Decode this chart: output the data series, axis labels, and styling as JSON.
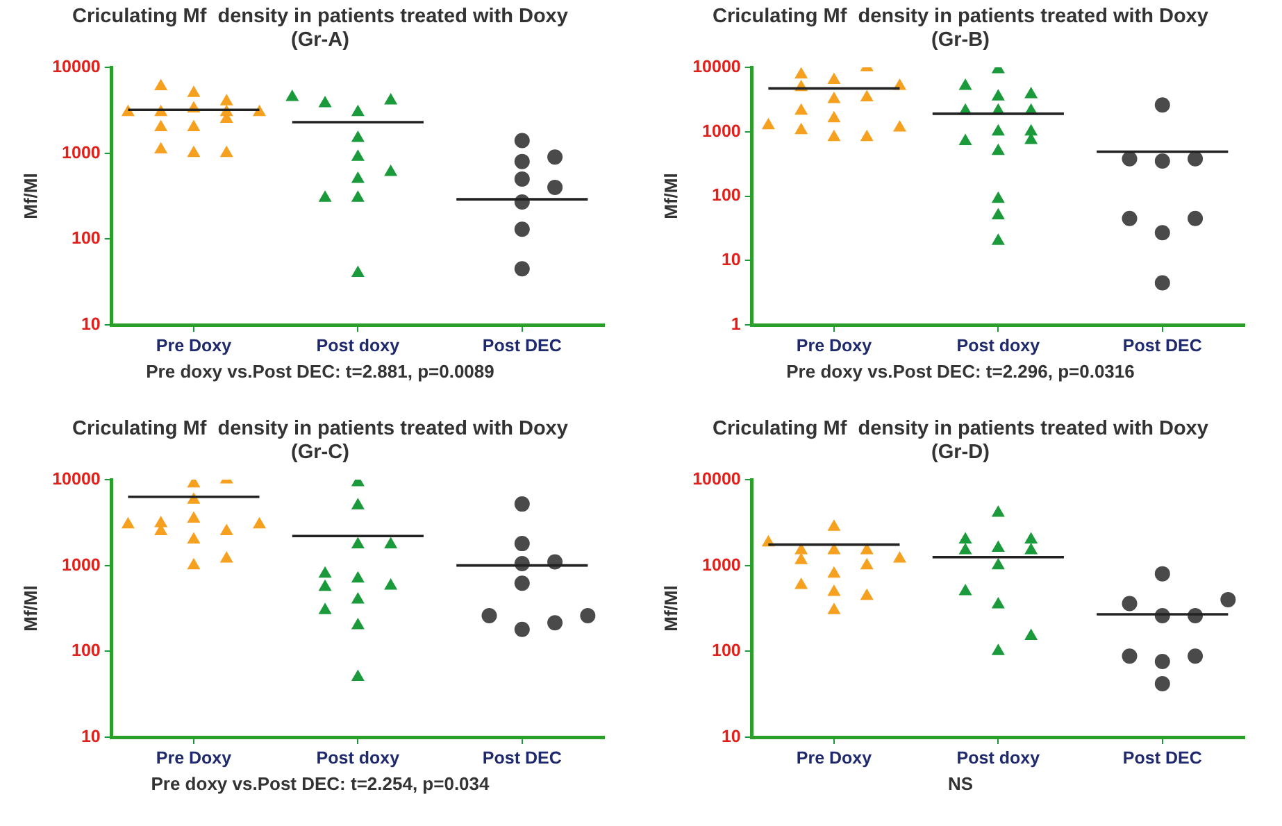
{
  "chart_data": [
    {
      "type": "scatter",
      "title": "Criculating Mf  density in patients treated with Doxy",
      "subtitle": "(Gr-A)",
      "ylabel": "Mf/Ml",
      "log": "y",
      "grid": false,
      "legend": false,
      "categories": [
        null,
        null,
        "Pre Doxy",
        null,
        null,
        null,
        null,
        "Post doxy",
        null,
        null,
        null,
        null,
        "Post DEC",
        null,
        null
      ],
      "ylim": [
        10,
        10000
      ],
      "yticks": [
        10,
        100,
        1000,
        10000
      ],
      "annotations": [
        "Pre doxy vs.Post DEC: t=2.881, p=0.0089"
      ],
      "series": [
        {
          "type": "scatter",
          "marker": "triangle",
          "color": "#f5a01e",
          "values": [
            3000,
            6000,
            5000,
            4000,
            3000,
            null,
            null,
            null,
            null,
            null,
            null,
            null,
            null,
            null,
            null
          ]
        },
        {
          "type": "scatter",
          "marker": "triangle",
          "color": "#f5a01e",
          "values": [
            null,
            3000,
            3300,
            3000,
            null,
            null,
            null,
            null,
            null,
            null,
            null,
            null,
            null,
            null,
            null
          ]
        },
        {
          "type": "scatter",
          "marker": "triangle",
          "color": "#f5a01e",
          "values": [
            null,
            2000,
            2000,
            2500,
            null,
            null,
            null,
            null,
            null,
            null,
            null,
            null,
            null,
            null,
            null
          ]
        },
        {
          "type": "scatter",
          "marker": "triangle",
          "color": "#f5a01e",
          "values": [
            null,
            1100,
            1000,
            1000,
            null,
            null,
            null,
            null,
            null,
            null,
            null,
            null,
            null,
            null,
            null
          ]
        },
        {
          "type": "scatter",
          "marker": "triangle",
          "color": "#1a9a3a",
          "values": [
            null,
            null,
            null,
            null,
            null,
            4500,
            3800,
            3000,
            4100,
            null,
            null,
            null,
            null,
            null,
            null
          ]
        },
        {
          "type": "scatter",
          "marker": "triangle",
          "color": "#1a9a3a",
          "values": [
            null,
            null,
            null,
            null,
            null,
            null,
            300,
            1500,
            600,
            null,
            null,
            null,
            null,
            null,
            null
          ]
        },
        {
          "type": "scatter",
          "marker": "triangle",
          "color": "#1a9a3a",
          "values": [
            null,
            null,
            null,
            null,
            null,
            null,
            null,
            900,
            null,
            null,
            null,
            null,
            null,
            null,
            null
          ]
        },
        {
          "type": "scatter",
          "marker": "triangle",
          "color": "#1a9a3a",
          "values": [
            null,
            null,
            null,
            null,
            null,
            null,
            null,
            500,
            null,
            null,
            null,
            null,
            null,
            null,
            null
          ]
        },
        {
          "type": "scatter",
          "marker": "triangle",
          "color": "#1a9a3a",
          "values": [
            null,
            null,
            null,
            null,
            null,
            null,
            null,
            300,
            null,
            null,
            null,
            null,
            null,
            null,
            null
          ]
        },
        {
          "type": "scatter",
          "marker": "triangle",
          "color": "#1a9a3a",
          "values": [
            null,
            null,
            null,
            null,
            null,
            null,
            null,
            40,
            null,
            null,
            null,
            null,
            null,
            null,
            null
          ]
        },
        {
          "type": "scatter",
          "marker": "circle",
          "color": "#4a4a4a",
          "values": [
            null,
            null,
            null,
            null,
            null,
            null,
            null,
            null,
            null,
            null,
            null,
            null,
            1400,
            900,
            null
          ]
        },
        {
          "type": "scatter",
          "marker": "circle",
          "color": "#4a4a4a",
          "values": [
            null,
            null,
            null,
            null,
            null,
            null,
            null,
            null,
            null,
            null,
            null,
            null,
            800,
            400,
            null
          ]
        },
        {
          "type": "scatter",
          "marker": "circle",
          "color": "#4a4a4a",
          "values": [
            null,
            null,
            null,
            null,
            null,
            null,
            null,
            null,
            null,
            null,
            null,
            null,
            500,
            null,
            null
          ]
        },
        {
          "type": "scatter",
          "marker": "circle",
          "color": "#4a4a4a",
          "values": [
            null,
            null,
            null,
            null,
            null,
            null,
            null,
            null,
            null,
            null,
            null,
            null,
            270,
            null,
            null
          ]
        },
        {
          "type": "scatter",
          "marker": "circle",
          "color": "#4a4a4a",
          "values": [
            null,
            null,
            null,
            null,
            null,
            null,
            null,
            null,
            null,
            null,
            null,
            null,
            130,
            null,
            null
          ]
        },
        {
          "type": "scatter",
          "marker": "circle",
          "color": "#4a4a4a",
          "values": [
            null,
            null,
            null,
            null,
            null,
            null,
            null,
            null,
            null,
            null,
            null,
            null,
            45,
            null,
            null
          ]
        },
        {
          "type": "line",
          "marker": "none",
          "color": "#222222",
          "values": [
            3200,
            3200,
            3200,
            3200,
            3200,
            null,
            null,
            null,
            null,
            null,
            null,
            null,
            null,
            null,
            null
          ]
        },
        {
          "type": "line",
          "marker": "none",
          "color": "#222222",
          "values": [
            null,
            null,
            null,
            null,
            null,
            2300,
            2300,
            2300,
            2300,
            2300,
            null,
            null,
            null,
            null,
            null
          ]
        },
        {
          "type": "line",
          "marker": "none",
          "color": "#222222",
          "values": [
            null,
            null,
            null,
            null,
            null,
            null,
            null,
            null,
            null,
            null,
            290,
            290,
            290,
            290,
            290
          ]
        }
      ]
    },
    {
      "type": "scatter",
      "title": "Criculating Mf  density in patients treated with Doxy",
      "subtitle": "(Gr-B)",
      "ylabel": "Mf/Ml",
      "log": "y",
      "grid": false,
      "legend": false,
      "categories": [
        null,
        null,
        "Pre Doxy",
        null,
        null,
        null,
        null,
        "Post doxy",
        null,
        null,
        null,
        null,
        "Post DEC",
        null,
        null
      ],
      "ylim": [
        1,
        10000
      ],
      "yticks": [
        1,
        10,
        100,
        1000,
        10000
      ],
      "annotations": [
        "Pre doxy vs.Post DEC: t=2.296, p=0.0316"
      ],
      "series": [
        {
          "type": "scatter",
          "marker": "triangle",
          "color": "#f5a01e",
          "values": [
            1250,
            7700,
            6300,
            10000,
            5100,
            null,
            null,
            null,
            null,
            null,
            null,
            null,
            null,
            null,
            null
          ]
        },
        {
          "type": "scatter",
          "marker": "triangle",
          "color": "#f5a01e",
          "values": [
            null,
            4900,
            3200,
            3400,
            1150,
            null,
            null,
            null,
            null,
            null,
            null,
            null,
            null,
            null,
            null
          ]
        },
        {
          "type": "scatter",
          "marker": "triangle",
          "color": "#f5a01e",
          "values": [
            null,
            2100,
            1600,
            820,
            null,
            null,
            null,
            null,
            null,
            null,
            null,
            null,
            null,
            null,
            null
          ]
        },
        {
          "type": "scatter",
          "marker": "triangle",
          "color": "#f5a01e",
          "values": [
            null,
            1050,
            820,
            null,
            null,
            null,
            null,
            null,
            null,
            null,
            null,
            null,
            null,
            null,
            null
          ]
        },
        {
          "type": "scatter",
          "marker": "triangle",
          "color": "#1a9a3a",
          "values": [
            null,
            null,
            null,
            null,
            null,
            null,
            5100,
            9300,
            3800,
            null,
            null,
            null,
            null,
            null,
            null
          ]
        },
        {
          "type": "scatter",
          "marker": "triangle",
          "color": "#1a9a3a",
          "values": [
            null,
            null,
            null,
            null,
            null,
            null,
            2100,
            3500,
            2100,
            null,
            null,
            null,
            null,
            null,
            null
          ]
        },
        {
          "type": "scatter",
          "marker": "triangle",
          "color": "#1a9a3a",
          "values": [
            null,
            null,
            null,
            null,
            null,
            null,
            710,
            2100,
            1000,
            null,
            null,
            null,
            null,
            null,
            null
          ]
        },
        {
          "type": "scatter",
          "marker": "triangle",
          "color": "#1a9a3a",
          "values": [
            null,
            null,
            null,
            null,
            null,
            null,
            null,
            1000,
            740,
            null,
            null,
            null,
            null,
            null,
            null
          ]
        },
        {
          "type": "scatter",
          "marker": "triangle",
          "color": "#1a9a3a",
          "values": [
            null,
            null,
            null,
            null,
            null,
            null,
            null,
            500,
            null,
            null,
            null,
            null,
            null,
            null,
            null
          ]
        },
        {
          "type": "scatter",
          "marker": "triangle",
          "color": "#1a9a3a",
          "values": [
            null,
            null,
            null,
            null,
            null,
            null,
            null,
            90,
            null,
            null,
            null,
            null,
            null,
            null,
            null
          ]
        },
        {
          "type": "scatter",
          "marker": "triangle",
          "color": "#1a9a3a",
          "values": [
            null,
            null,
            null,
            null,
            null,
            null,
            null,
            50,
            null,
            null,
            null,
            null,
            null,
            null,
            null
          ]
        },
        {
          "type": "scatter",
          "marker": "triangle",
          "color": "#1a9a3a",
          "values": [
            null,
            null,
            null,
            null,
            null,
            null,
            null,
            20,
            null,
            null,
            null,
            null,
            null,
            null,
            null
          ]
        },
        {
          "type": "scatter",
          "marker": "circle",
          "color": "#4a4a4a",
          "values": [
            null,
            null,
            null,
            null,
            null,
            null,
            null,
            null,
            null,
            null,
            null,
            380,
            2600,
            380,
            null
          ]
        },
        {
          "type": "scatter",
          "marker": "circle",
          "color": "#4a4a4a",
          "values": [
            null,
            null,
            null,
            null,
            null,
            null,
            null,
            null,
            null,
            null,
            null,
            45,
            350,
            45,
            null
          ]
        },
        {
          "type": "scatter",
          "marker": "circle",
          "color": "#4a4a4a",
          "values": [
            null,
            null,
            null,
            null,
            null,
            null,
            null,
            null,
            null,
            null,
            null,
            null,
            27,
            null,
            null
          ]
        },
        {
          "type": "scatter",
          "marker": "circle",
          "color": "#4a4a4a",
          "values": [
            null,
            null,
            null,
            null,
            null,
            null,
            null,
            null,
            null,
            null,
            null,
            null,
            4.5,
            null,
            null
          ]
        },
        {
          "type": "line",
          "marker": "none",
          "color": "#222222",
          "values": [
            4700,
            4700,
            4700,
            4700,
            4700,
            null,
            null,
            null,
            null,
            null,
            null,
            null,
            null,
            null,
            null
          ]
        },
        {
          "type": "line",
          "marker": "none",
          "color": "#222222",
          "values": [
            null,
            null,
            null,
            null,
            null,
            1900,
            1900,
            1900,
            1900,
            1900,
            null,
            null,
            null,
            null,
            null
          ]
        },
        {
          "type": "line",
          "marker": "none",
          "color": "#222222",
          "values": [
            null,
            null,
            null,
            null,
            null,
            null,
            null,
            null,
            null,
            null,
            490,
            490,
            490,
            490,
            490
          ]
        }
      ]
    },
    {
      "type": "scatter",
      "title": "Criculating Mf  density in patients treated with Doxy",
      "subtitle": "(Gr-C)",
      "ylabel": "Mf/Ml",
      "log": "y",
      "grid": false,
      "legend": false,
      "categories": [
        null,
        null,
        "Pre Doxy",
        null,
        null,
        null,
        null,
        "Post doxy",
        null,
        null,
        null,
        null,
        "Post DEC",
        null,
        null
      ],
      "ylim": [
        10,
        10000
      ],
      "yticks": [
        10,
        100,
        1000,
        10000
      ],
      "annotations": [
        "Pre doxy vs.Post DEC: t=2.254, p=0.034"
      ],
      "series": [
        {
          "type": "scatter",
          "marker": "triangle",
          "color": "#f5a01e",
          "values": [
            3000,
            3100,
            9000,
            10000,
            3000,
            null,
            null,
            null,
            null,
            null,
            null,
            null,
            null,
            null,
            null
          ]
        },
        {
          "type": "scatter",
          "marker": "triangle",
          "color": "#f5a01e",
          "values": [
            null,
            2500,
            5800,
            2500,
            null,
            null,
            null,
            null,
            null,
            null,
            null,
            null,
            null,
            null,
            null
          ]
        },
        {
          "type": "scatter",
          "marker": "triangle",
          "color": "#f5a01e",
          "values": [
            null,
            null,
            3500,
            1200,
            null,
            null,
            null,
            null,
            null,
            null,
            null,
            null,
            null,
            null,
            null
          ]
        },
        {
          "type": "scatter",
          "marker": "triangle",
          "color": "#f5a01e",
          "values": [
            null,
            null,
            2000,
            null,
            null,
            null,
            null,
            null,
            null,
            null,
            null,
            null,
            null,
            null,
            null
          ]
        },
        {
          "type": "scatter",
          "marker": "triangle",
          "color": "#f5a01e",
          "values": [
            null,
            null,
            1000,
            null,
            null,
            null,
            null,
            null,
            null,
            null,
            null,
            null,
            null,
            null,
            null
          ]
        },
        {
          "type": "scatter",
          "marker": "triangle",
          "color": "#1a9a3a",
          "values": [
            null,
            null,
            null,
            null,
            null,
            null,
            800,
            9300,
            1750,
            null,
            null,
            null,
            null,
            null,
            null
          ]
        },
        {
          "type": "scatter",
          "marker": "triangle",
          "color": "#1a9a3a",
          "values": [
            null,
            null,
            null,
            null,
            null,
            null,
            560,
            5000,
            580,
            null,
            null,
            null,
            null,
            null,
            null
          ]
        },
        {
          "type": "scatter",
          "marker": "triangle",
          "color": "#1a9a3a",
          "values": [
            null,
            null,
            null,
            null,
            null,
            null,
            300,
            1750,
            null,
            null,
            null,
            null,
            null,
            null,
            null
          ]
        },
        {
          "type": "scatter",
          "marker": "triangle",
          "color": "#1a9a3a",
          "values": [
            null,
            null,
            null,
            null,
            null,
            null,
            null,
            700,
            null,
            null,
            null,
            null,
            null,
            null,
            null
          ]
        },
        {
          "type": "scatter",
          "marker": "triangle",
          "color": "#1a9a3a",
          "values": [
            null,
            null,
            null,
            null,
            null,
            null,
            null,
            400,
            null,
            null,
            null,
            null,
            null,
            null,
            null
          ]
        },
        {
          "type": "scatter",
          "marker": "triangle",
          "color": "#1a9a3a",
          "values": [
            null,
            null,
            null,
            null,
            null,
            null,
            null,
            200,
            null,
            null,
            null,
            null,
            null,
            null,
            null
          ]
        },
        {
          "type": "scatter",
          "marker": "triangle",
          "color": "#1a9a3a",
          "values": [
            null,
            null,
            null,
            null,
            null,
            null,
            null,
            50,
            null,
            null,
            null,
            null,
            null,
            null,
            null
          ]
        },
        {
          "type": "scatter",
          "marker": "circle",
          "color": "#4a4a4a",
          "values": [
            null,
            null,
            null,
            null,
            null,
            null,
            null,
            null,
            null,
            null,
            null,
            260,
            5200,
            1100,
            260
          ]
        },
        {
          "type": "scatter",
          "marker": "circle",
          "color": "#4a4a4a",
          "values": [
            null,
            null,
            null,
            null,
            null,
            null,
            null,
            null,
            null,
            null,
            null,
            null,
            1800,
            215,
            null
          ]
        },
        {
          "type": "scatter",
          "marker": "circle",
          "color": "#4a4a4a",
          "values": [
            null,
            null,
            null,
            null,
            null,
            null,
            null,
            null,
            null,
            null,
            null,
            null,
            1050,
            null,
            null
          ]
        },
        {
          "type": "scatter",
          "marker": "circle",
          "color": "#4a4a4a",
          "values": [
            null,
            null,
            null,
            null,
            null,
            null,
            null,
            null,
            null,
            null,
            null,
            null,
            620,
            null,
            null
          ]
        },
        {
          "type": "scatter",
          "marker": "circle",
          "color": "#4a4a4a",
          "values": [
            null,
            null,
            null,
            null,
            null,
            null,
            null,
            null,
            null,
            null,
            null,
            null,
            180,
            null,
            null
          ]
        },
        {
          "type": "line",
          "marker": "none",
          "color": "#222222",
          "values": [
            6300,
            6300,
            6300,
            6300,
            6300,
            null,
            null,
            null,
            null,
            null,
            null,
            null,
            null,
            null,
            null
          ]
        },
        {
          "type": "line",
          "marker": "none",
          "color": "#222222",
          "values": [
            null,
            null,
            null,
            null,
            null,
            2200,
            2200,
            2200,
            2200,
            2200,
            null,
            null,
            null,
            null,
            null
          ]
        },
        {
          "type": "line",
          "marker": "none",
          "color": "#222222",
          "values": [
            null,
            null,
            null,
            null,
            null,
            null,
            null,
            null,
            null,
            null,
            1000,
            1000,
            1000,
            1000,
            1000
          ]
        }
      ]
    },
    {
      "type": "scatter",
      "title": "Criculating Mf  density in patients treated with Doxy",
      "subtitle": "(Gr-D)",
      "ylabel": "Mf/Ml",
      "log": "y",
      "grid": false,
      "legend": false,
      "categories": [
        null,
        null,
        "Pre Doxy",
        null,
        null,
        null,
        null,
        "Post doxy",
        null,
        null,
        null,
        null,
        "Post DEC",
        null,
        null
      ],
      "ylim": [
        10,
        10000
      ],
      "yticks": [
        10,
        100,
        1000,
        10000
      ],
      "annotations": [
        "NS"
      ],
      "series": [
        {
          "type": "scatter",
          "marker": "triangle",
          "color": "#f5a01e",
          "values": [
            1850,
            1500,
            2800,
            1500,
            1200,
            null,
            null,
            null,
            null,
            null,
            null,
            null,
            null,
            null,
            null
          ]
        },
        {
          "type": "scatter",
          "marker": "triangle",
          "color": "#f5a01e",
          "values": [
            null,
            1150,
            1500,
            1000,
            null,
            null,
            null,
            null,
            null,
            null,
            null,
            null,
            null,
            null,
            null
          ]
        },
        {
          "type": "scatter",
          "marker": "triangle",
          "color": "#f5a01e",
          "values": [
            null,
            590,
            800,
            440,
            null,
            null,
            null,
            null,
            null,
            null,
            null,
            null,
            null,
            null,
            null
          ]
        },
        {
          "type": "scatter",
          "marker": "triangle",
          "color": "#f5a01e",
          "values": [
            null,
            null,
            490,
            null,
            null,
            null,
            null,
            null,
            null,
            null,
            null,
            null,
            null,
            null,
            null
          ]
        },
        {
          "type": "scatter",
          "marker": "triangle",
          "color": "#f5a01e",
          "values": [
            null,
            null,
            300,
            null,
            null,
            null,
            null,
            null,
            null,
            null,
            null,
            null,
            null,
            null,
            null
          ]
        },
        {
          "type": "scatter",
          "marker": "triangle",
          "color": "#1a9a3a",
          "values": [
            null,
            null,
            null,
            null,
            null,
            null,
            2000,
            4100,
            2000,
            null,
            null,
            null,
            null,
            null,
            null
          ]
        },
        {
          "type": "scatter",
          "marker": "triangle",
          "color": "#1a9a3a",
          "values": [
            null,
            null,
            null,
            null,
            null,
            null,
            1500,
            1600,
            1500,
            null,
            null,
            null,
            null,
            null,
            null
          ]
        },
        {
          "type": "scatter",
          "marker": "triangle",
          "color": "#1a9a3a",
          "values": [
            null,
            null,
            null,
            null,
            null,
            null,
            500,
            1000,
            150,
            null,
            null,
            null,
            null,
            null,
            null
          ]
        },
        {
          "type": "scatter",
          "marker": "triangle",
          "color": "#1a9a3a",
          "values": [
            null,
            null,
            null,
            null,
            null,
            null,
            null,
            350,
            null,
            null,
            null,
            null,
            null,
            null,
            null
          ]
        },
        {
          "type": "scatter",
          "marker": "triangle",
          "color": "#1a9a3a",
          "values": [
            null,
            null,
            null,
            null,
            null,
            null,
            null,
            100,
            null,
            null,
            null,
            null,
            null,
            null,
            null
          ]
        },
        {
          "type": "scatter",
          "marker": "circle",
          "color": "#4a4a4a",
          "values": [
            null,
            null,
            null,
            null,
            null,
            null,
            null,
            null,
            null,
            null,
            null,
            360,
            800,
            260,
            400
          ]
        },
        {
          "type": "scatter",
          "marker": "circle",
          "color": "#4a4a4a",
          "values": [
            null,
            null,
            null,
            null,
            null,
            null,
            null,
            null,
            null,
            null,
            null,
            88,
            260,
            88,
            null
          ]
        },
        {
          "type": "scatter",
          "marker": "circle",
          "color": "#4a4a4a",
          "values": [
            null,
            null,
            null,
            null,
            null,
            null,
            null,
            null,
            null,
            null,
            null,
            null,
            76,
            null,
            null
          ]
        },
        {
          "type": "scatter",
          "marker": "circle",
          "color": "#4a4a4a",
          "values": [
            null,
            null,
            null,
            null,
            null,
            null,
            null,
            null,
            null,
            null,
            null,
            null,
            42,
            null,
            null
          ]
        },
        {
          "type": "line",
          "marker": "none",
          "color": "#222222",
          "values": [
            1750,
            1750,
            1750,
            1750,
            1750,
            null,
            null,
            null,
            null,
            null,
            null,
            null,
            null,
            null,
            null
          ]
        },
        {
          "type": "line",
          "marker": "none",
          "color": "#222222",
          "values": [
            null,
            null,
            null,
            null,
            null,
            1250,
            1250,
            1250,
            1250,
            1250,
            null,
            null,
            null,
            null,
            null
          ]
        },
        {
          "type": "line",
          "marker": "none",
          "color": "#222222",
          "values": [
            null,
            null,
            null,
            null,
            null,
            null,
            null,
            null,
            null,
            null,
            270,
            270,
            270,
            270,
            270
          ]
        }
      ]
    }
  ]
}
